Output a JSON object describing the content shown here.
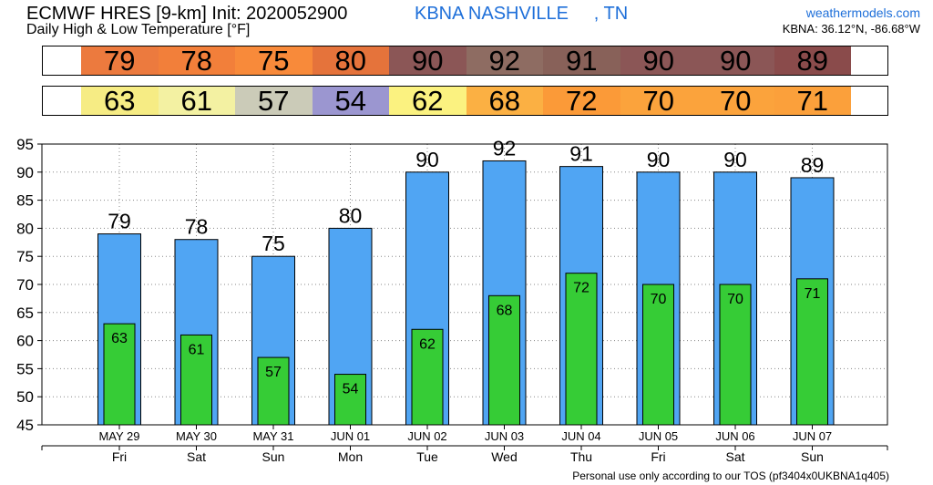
{
  "header": {
    "title": "ECMWF HRES [9-km] Init: 2020052900",
    "subtitle": "Daily High & Low Temperature [°F]",
    "station": "KBNA NASHVILLE     , TN",
    "site": "weathermodels.com",
    "coords": "KBNA: 36.12°N, -86.68°W"
  },
  "footer": {
    "tos": "Personal use only according to our TOS (pf3404x0UKBNA1q405)"
  },
  "colors": {
    "high_bar": "#50a5f3",
    "low_bar": "#36cc36",
    "high_strip": [
      "#ec7a3e",
      "#f27f3a",
      "#f88a3a",
      "#e5733b",
      "#8b5656",
      "#8e6c62",
      "#886159",
      "#8b5656",
      "#8b5656",
      "#8a4b4b"
    ],
    "low_strip": [
      "#f6ec84",
      "#f3f1a2",
      "#cbcbb8",
      "#9b96d0",
      "#fbf280",
      "#fbb043",
      "#fb9a38",
      "#fba33c",
      "#fba33c",
      "#fba03b"
    ]
  },
  "chart_data": {
    "type": "bar",
    "title": "Daily High & Low Temperature [°F]",
    "xlabel": "",
    "ylabel": "",
    "ylim": [
      45,
      95
    ],
    "yticks": [
      45,
      50,
      55,
      60,
      65,
      70,
      75,
      80,
      85,
      90,
      95
    ],
    "grid": true,
    "categories": [
      "MAY 29",
      "MAY 30",
      "MAY 31",
      "JUN 01",
      "JUN 02",
      "JUN 03",
      "JUN 04",
      "JUN 05",
      "JUN 06",
      "JUN 07"
    ],
    "days": [
      "Fri",
      "Sat",
      "Sun",
      "Mon",
      "Tue",
      "Wed",
      "Thu",
      "Fri",
      "Sat",
      "Sun"
    ],
    "series": [
      {
        "values": [
          79,
          78,
          75,
          80,
          90,
          92,
          91,
          90,
          90,
          89
        ]
      },
      {
        "values": [
          63,
          61,
          57,
          54,
          62,
          68,
          72,
          70,
          70,
          71
        ]
      }
    ]
  }
}
